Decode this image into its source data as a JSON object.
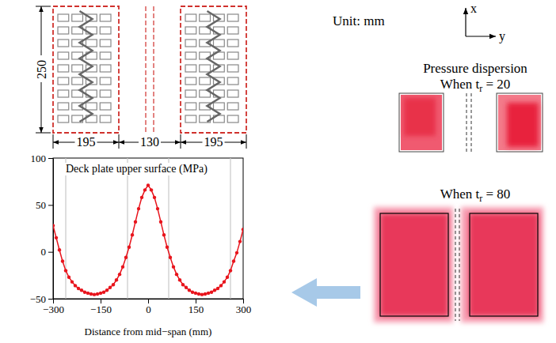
{
  "chart_data": {
    "type": "line",
    "title": "Deck plate upper surface (MPa)",
    "xlabel": "Distance from mid−span (mm)",
    "x": [
      -300,
      -290,
      -280,
      -270,
      -260,
      -250,
      -240,
      -230,
      -220,
      -210,
      -200,
      -190,
      -180,
      -170,
      -160,
      -150,
      -140,
      -130,
      -120,
      -110,
      -100,
      -90,
      -80,
      -70,
      -60,
      -50,
      -40,
      -30,
      -20,
      -10,
      0,
      10,
      20,
      30,
      40,
      50,
      60,
      70,
      80,
      90,
      100,
      110,
      120,
      130,
      140,
      150,
      160,
      170,
      180,
      190,
      200,
      210,
      220,
      230,
      240,
      250,
      260,
      270,
      280,
      290,
      300
    ],
    "values": [
      28,
      15,
      2,
      -10,
      -20,
      -27,
      -32,
      -36,
      -39,
      -41,
      -43,
      -44,
      -45,
      -45.5,
      -45,
      -44,
      -43,
      -41,
      -38,
      -35,
      -30,
      -24,
      -16,
      -6,
      5,
      18,
      32,
      46,
      58,
      66,
      71,
      66,
      58,
      46,
      32,
      18,
      5,
      -6,
      -16,
      -24,
      -30,
      -35,
      -38,
      -41,
      -43,
      -44,
      -45,
      -45.5,
      -45,
      -44,
      -43,
      -41,
      -39,
      -36,
      -32,
      -27,
      -20,
      -10,
      -1,
      11,
      24
    ],
    "color": "#e8141c",
    "marker": "circle",
    "xlim": [
      -300,
      300
    ],
    "xticks": [
      {
        "value": -300,
        "label": "−300"
      },
      {
        "value": -150,
        "label": "−150"
      },
      0,
      150,
      300
    ],
    "ylim": [
      -50,
      100
    ],
    "yticks": [
      {
        "value": -50,
        "label": "−50"
      },
      0,
      50,
      100
    ],
    "reference_lines": [
      -260,
      -65,
      65,
      260
    ]
  },
  "diagram": {
    "unit": "Unit: mm",
    "axis_x": "x",
    "axis_y": "y",
    "footprint_length": 250,
    "widths": [
      195,
      130,
      195
    ],
    "pressure_title": "Pressure dispersion",
    "cases": [
      [
        "When t",
        "r",
        " = 20"
      ],
      [
        "When t",
        "r",
        " = 80"
      ]
    ]
  }
}
